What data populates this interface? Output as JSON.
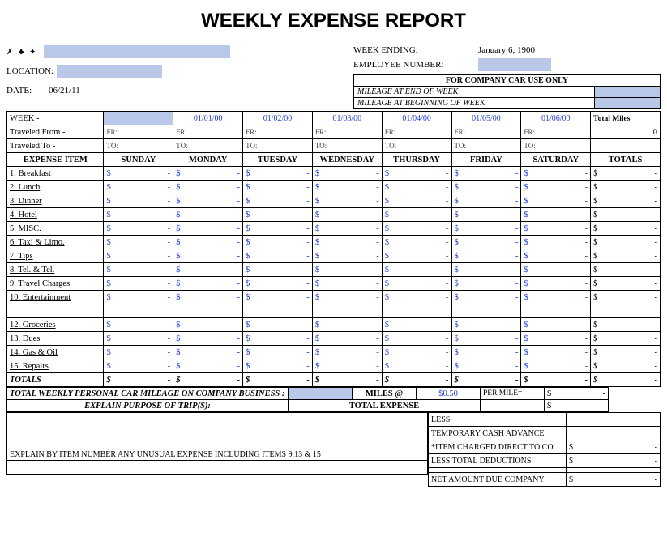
{
  "title": "WEEKLY EXPENSE REPORT",
  "header": {
    "week_ending_label": "WEEK ENDING:",
    "week_ending_value": "January 6, 1900",
    "employee_number_label": "EMPLOYEE NUMBER:",
    "location_label": "LOCATION:",
    "date_label": "DATE:",
    "date_value": "06/21/11"
  },
  "carbox": {
    "title": "FOR COMPANY CAR USE ONLY",
    "row1": "MILEAGE AT END OF WEEK",
    "row2": "MILEAGE AT BEGINNING OF WEEK"
  },
  "week": {
    "label": "WEEK -",
    "dates": [
      "",
      "01/01/00",
      "01/02/00",
      "01/03/00",
      "01/04/00",
      "01/05/00",
      "01/06/00"
    ],
    "total_miles_label": "Total Miles",
    "total_miles_value": "0"
  },
  "travel": {
    "from_label": "Traveled From -",
    "to_label": "Traveled To -",
    "fr": "FR:",
    "to": "TO:"
  },
  "cols": {
    "item": "EXPENSE ITEM",
    "days": [
      "SUNDAY",
      "MONDAY",
      "TUESDAY",
      "WEDNESDAY",
      "THURSDAY",
      "FRIDAY",
      "SATURDAY"
    ],
    "totals": "TOTALS"
  },
  "items": [
    "1. Breakfast",
    "2. Lunch",
    "3. Dinner",
    "4. Hotel",
    "5.  MISC.",
    "6. Taxi & Limo.",
    "7. Tips",
    "8. Tel. & Tel.",
    "9. Travel Charges",
    "10. Entertainment",
    "",
    "12.  Groceries",
    "13. Dues",
    "14. Gas & Oil",
    "15. Repairs"
  ],
  "totals_label": "TOTALS",
  "mileage": {
    "text": "TOTAL WEEKLY PERSONAL CAR MILEAGE ON COMPANY BUSINESS :",
    "miles_at": "MILES @",
    "rate": "$0.50",
    "per_mile": "PER MILE="
  },
  "explain": {
    "purpose": "EXPLAIN PURPOSE OF TRIP(S):",
    "total_expense": "TOTAL EXPENSE",
    "unusual": "EXPLAIN BY ITEM NUMBER ANY UNUSUAL EXPENSE INCLUDING ITEMS 9,13 & 15"
  },
  "deductions": {
    "less": "LESS",
    "adv": "TEMPORARY CASH ADVANCE",
    "direct": "*ITEM CHARGED DIRECT TO CO.",
    "lesstot": "LESS TOTAL DEDUCTIONS",
    "net": "NET AMOUNT DUE COMPANY"
  },
  "currency_symbol": "$",
  "dash": "-",
  "colors": {
    "fill": "#b9c8e8",
    "link": "#2040d0"
  }
}
